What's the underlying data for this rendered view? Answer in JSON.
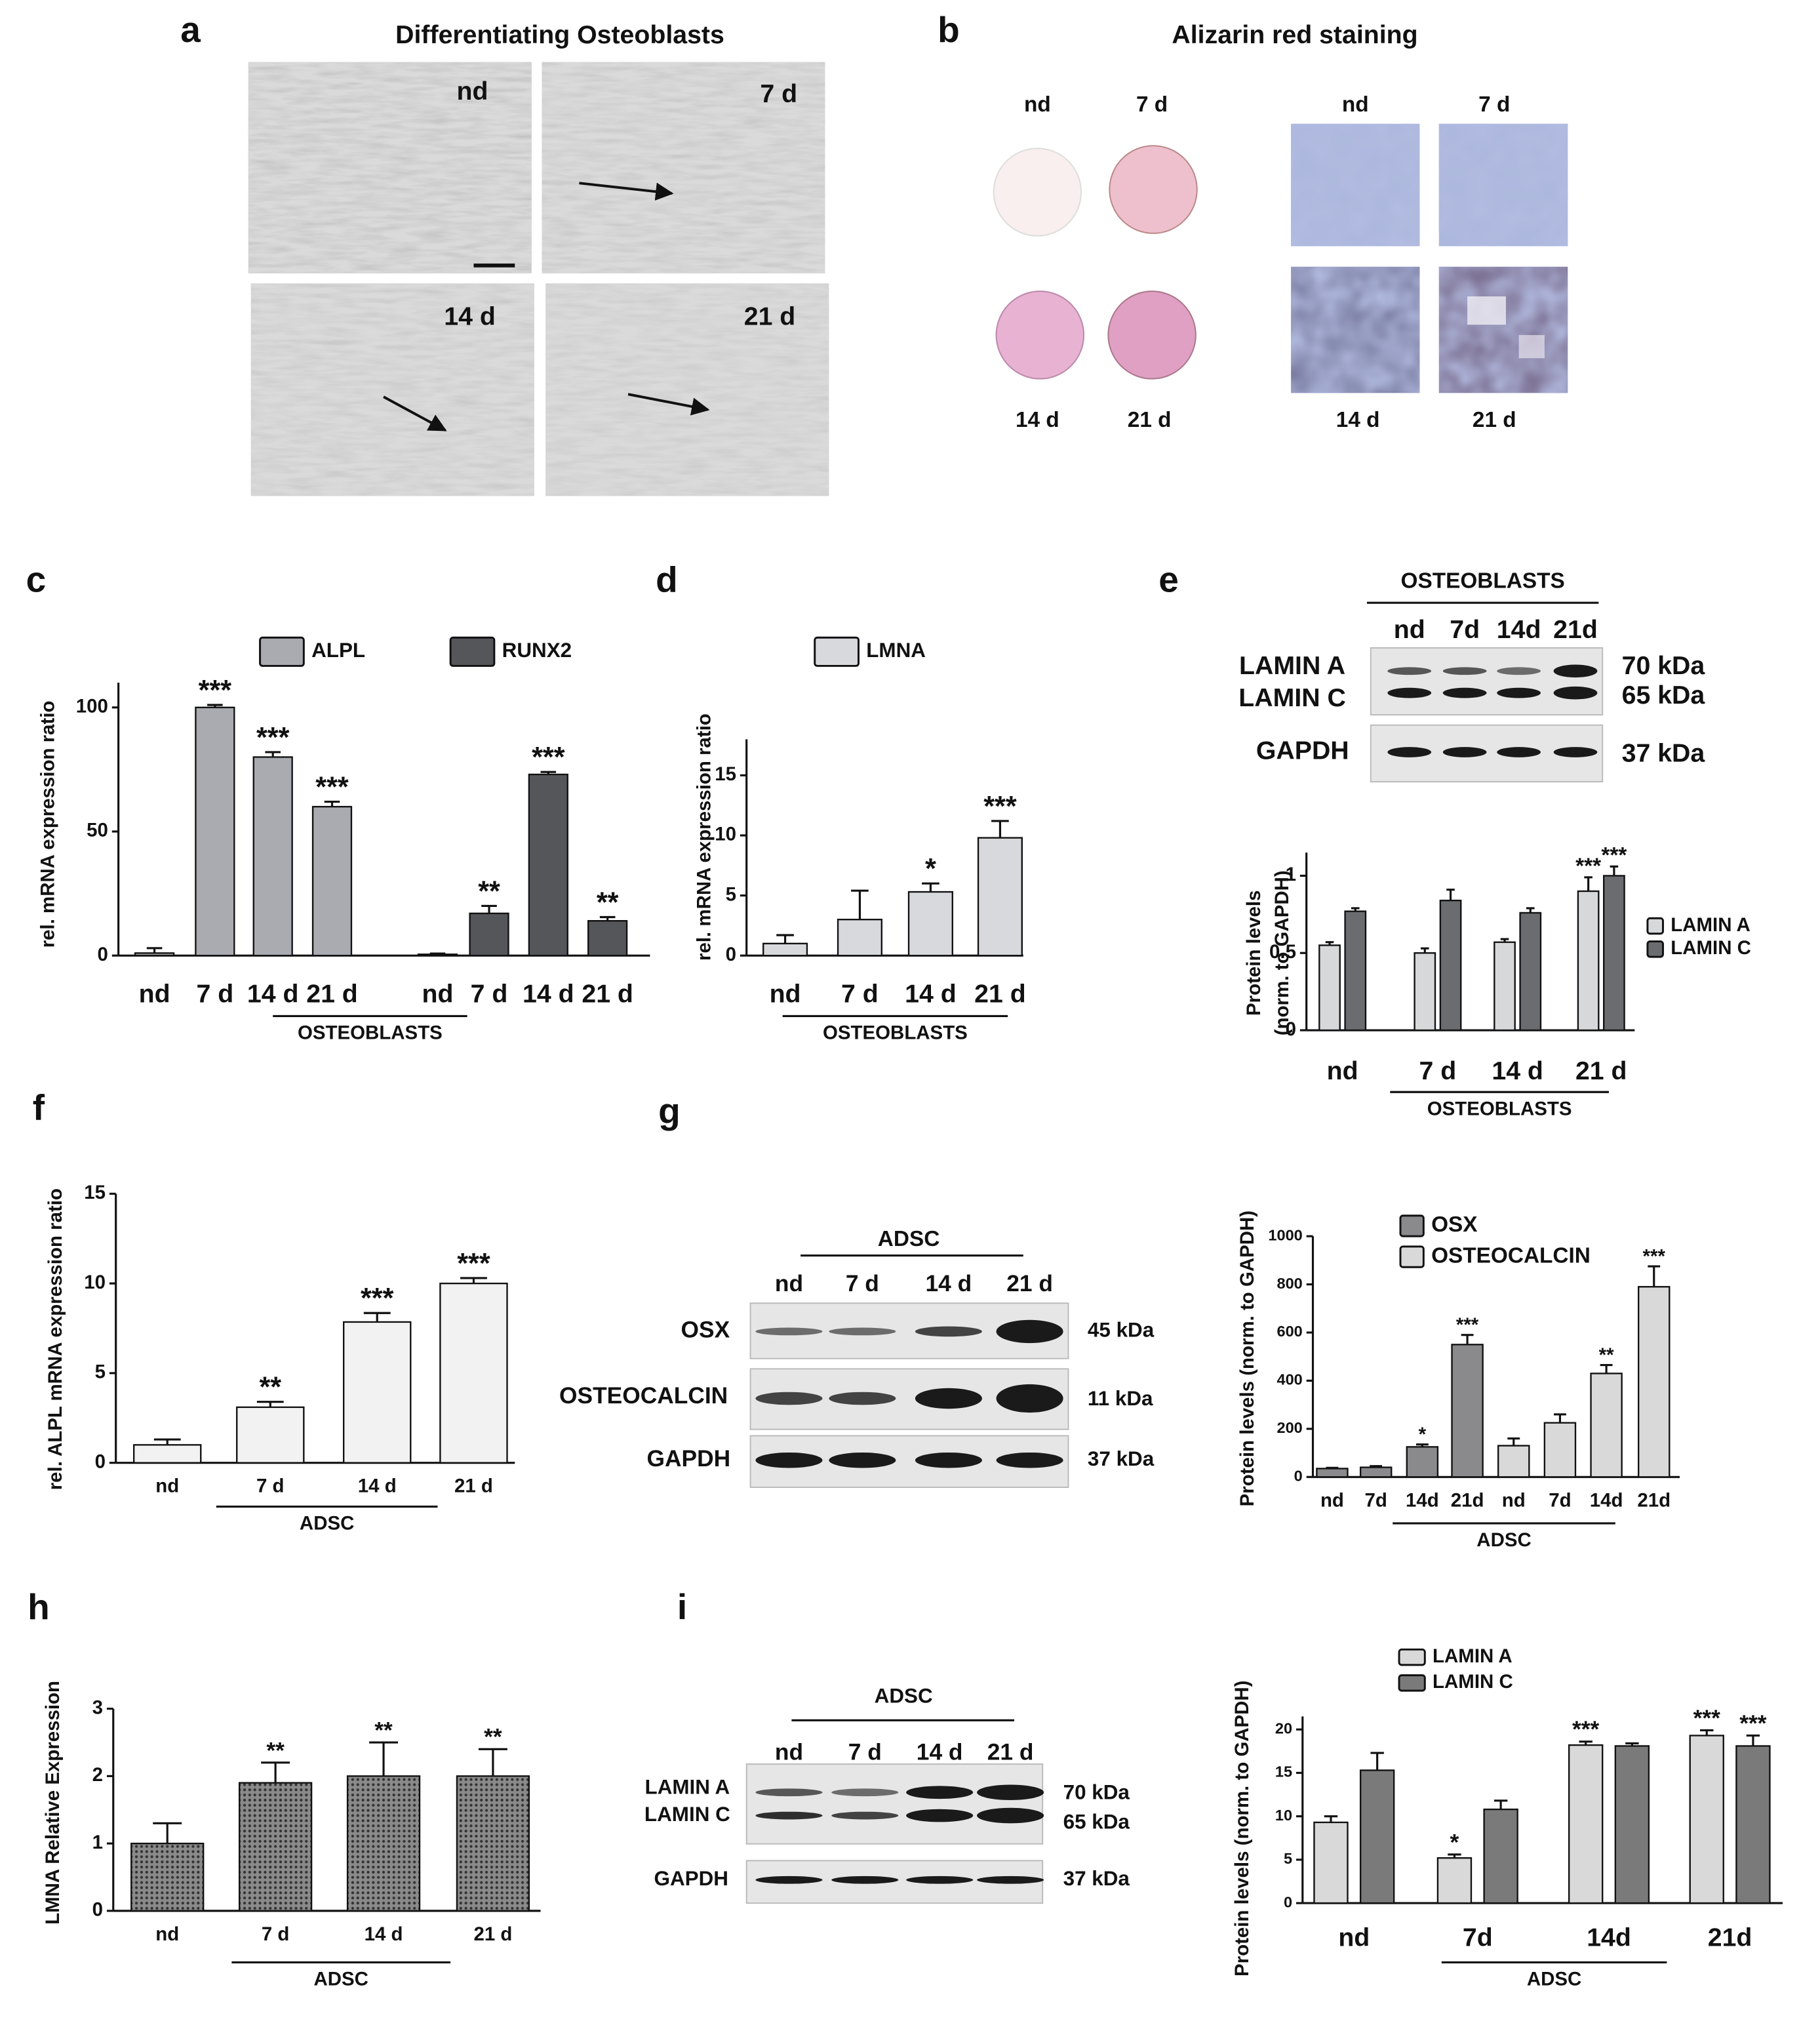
{
  "figure": {
    "panel_labels": [
      "a",
      "b",
      "c",
      "d",
      "e",
      "f",
      "g",
      "h",
      "i"
    ],
    "a": {
      "title": "Differentiating Osteoblasts",
      "labels": [
        "nd",
        "7 d",
        "14 d",
        "21 d"
      ]
    },
    "b": {
      "title": "Alizarin red staining",
      "plate_labels": [
        "nd",
        "7 d",
        "14 d",
        "21 d"
      ],
      "micro_labels": [
        "nd",
        "7 d",
        "14 d",
        "21 d"
      ]
    },
    "e_blot": {
      "group": "OSTEOBLASTS",
      "lanes": [
        "nd",
        "7d",
        "14d",
        "21d"
      ],
      "rows": [
        "LAMIN A",
        "LAMIN C",
        "GAPDH"
      ],
      "sizes": [
        "70 kDa",
        "65 kDa",
        "37 kDa"
      ]
    },
    "g_blot": {
      "group": "ADSC",
      "lanes": [
        "nd",
        "7 d",
        "14 d",
        "21 d"
      ],
      "rows": [
        "OSX",
        "OSTEOCALCIN",
        "GAPDH"
      ],
      "sizes": [
        "45 kDa",
        "11 kDa",
        "37 kDa"
      ]
    },
    "i_blot": {
      "group": "ADSC",
      "lanes": [
        "nd",
        "7 d",
        "14 d",
        "21 d"
      ],
      "rows": [
        "LAMIN A",
        "LAMIN C",
        "GAPDH"
      ],
      "sizes": [
        "70 kDa",
        "65 kDa",
        "37 kDa"
      ]
    }
  },
  "chart_data": [
    {
      "type": "bar",
      "ylabel": "rel. mRNA expression ratio",
      "group_label": "OSTEOBLASTS",
      "categories": [
        "nd",
        "7 d",
        "14 d",
        "21 d",
        "nd",
        "7 d",
        "14 d",
        "21 d"
      ],
      "series": [
        {
          "name": "ALPL",
          "color": "#a9abb0",
          "values": [
            1,
            100,
            80,
            60,
            null,
            null,
            null,
            null
          ],
          "errors": [
            2,
            1,
            2,
            2,
            null,
            null,
            null,
            null
          ],
          "significance": [
            null,
            "***",
            "***",
            "***",
            null,
            null,
            null,
            null
          ]
        },
        {
          "name": "RUNX2",
          "color": "#55565a",
          "values": [
            null,
            null,
            null,
            null,
            0.5,
            17,
            73,
            14
          ],
          "errors": [
            null,
            null,
            null,
            null,
            0.3,
            3,
            1,
            1.5
          ],
          "significance": [
            null,
            null,
            null,
            null,
            null,
            "**",
            "***",
            "**"
          ]
        }
      ],
      "ylim": [
        0,
        110
      ],
      "yticks": [
        0,
        50,
        100
      ]
    },
    {
      "type": "bar",
      "ylabel": "rel. mRNA expression ratio",
      "group_label": "OSTEOBLASTS",
      "categories": [
        "nd",
        "7 d",
        "14 d",
        "21 d"
      ],
      "series": [
        {
          "name": "LMNA",
          "color": "#d8d9dc",
          "values": [
            1,
            3,
            5.3,
            9.8
          ],
          "errors": [
            0.7,
            2.4,
            0.7,
            1.4
          ],
          "significance": [
            null,
            null,
            "*",
            "***"
          ]
        }
      ],
      "ylim": [
        0,
        18
      ],
      "yticks": [
        0,
        5,
        10,
        15
      ]
    },
    {
      "type": "bar",
      "ylabel": [
        "Protein levels",
        "(norm. to GAPDH)"
      ],
      "group_label": "OSTEOBLASTS",
      "categories": [
        "nd",
        "7 d",
        "14 d",
        "21 d"
      ],
      "series": [
        {
          "name": "LAMIN A",
          "color": "#d7d8da",
          "values": [
            0.55,
            0.5,
            0.57,
            0.9
          ],
          "errors": [
            0.02,
            0.03,
            0.02,
            0.09
          ],
          "significance": [
            null,
            null,
            null,
            "***"
          ]
        },
        {
          "name": "LAMIN C",
          "color": "#6b6c6f",
          "values": [
            0.77,
            0.84,
            0.76,
            1.0
          ],
          "errors": [
            0.02,
            0.07,
            0.03,
            0.06
          ],
          "significance": [
            null,
            null,
            null,
            "***"
          ]
        }
      ],
      "ylim": [
        0,
        1.15
      ],
      "yticks": [
        0,
        0.5,
        1
      ]
    },
    {
      "type": "bar",
      "ylabel": "rel. ALPL mRNA expression ratio",
      "group_label": "ADSC",
      "categories": [
        "nd",
        "7 d",
        "14 d",
        "21 d"
      ],
      "series": [
        {
          "name": "ALPL",
          "color": "#f2f2f2",
          "values": [
            1,
            3.1,
            7.85,
            10
          ],
          "errors": [
            0.3,
            0.3,
            0.5,
            0.3
          ],
          "significance": [
            null,
            "**",
            "***",
            "***"
          ]
        }
      ],
      "ylim": [
        0,
        15
      ],
      "yticks": [
        0,
        5,
        10,
        15
      ]
    },
    {
      "type": "bar",
      "ylabel": "Protein levels (norm. to GAPDH)",
      "group_label": "ADSC",
      "categories": [
        "nd",
        "7d",
        "14d",
        "21d",
        "nd",
        "7d",
        "14d",
        "21d"
      ],
      "series": [
        {
          "name": "OSX",
          "color": "#8a8a8c",
          "values": [
            35,
            40,
            125,
            550,
            null,
            null,
            null,
            null
          ],
          "errors": [
            3,
            5,
            10,
            40,
            null,
            null,
            null,
            null
          ],
          "significance": [
            null,
            null,
            "*",
            "***",
            null,
            null,
            null,
            null
          ]
        },
        {
          "name": "OSTEOCALCIN",
          "color": "#d9d9d9",
          "values": [
            null,
            null,
            null,
            null,
            130,
            225,
            430,
            790
          ],
          "errors": [
            null,
            null,
            null,
            null,
            30,
            35,
            35,
            85
          ],
          "significance": [
            null,
            null,
            null,
            null,
            null,
            null,
            "**",
            "***"
          ]
        }
      ],
      "ylim": [
        0,
        1000
      ],
      "yticks": [
        0,
        200,
        400,
        600,
        800,
        1000
      ]
    },
    {
      "type": "bar",
      "ylabel": "LMNA Relative Expression",
      "group_label": "ADSC",
      "categories": [
        "nd",
        "7 d",
        "14 d",
        "21 d"
      ],
      "series": [
        {
          "name": "LMNA",
          "color": "#6e6e6e",
          "pattern": "dots",
          "values": [
            1,
            1.9,
            2,
            2
          ],
          "errors": [
            0.3,
            0.3,
            0.5,
            0.4
          ],
          "significance": [
            null,
            "**",
            "**",
            "**"
          ]
        }
      ],
      "ylim": [
        0,
        3
      ],
      "yticks": [
        0,
        1,
        2,
        3
      ]
    },
    {
      "type": "bar",
      "ylabel": "Protein levels (norm. to GAPDH)",
      "group_label": "ADSC",
      "categories": [
        "nd",
        "7d",
        "14d",
        "21d"
      ],
      "series": [
        {
          "name": "LAMIN A",
          "color": "#d9d9d9",
          "values": [
            9.3,
            5.2,
            18.2,
            19.3
          ],
          "errors": [
            0.7,
            0.4,
            0.4,
            0.6
          ],
          "significance": [
            null,
            "*",
            "***",
            "***"
          ]
        },
        {
          "name": "LAMIN C",
          "color": "#7a7a7a",
          "values": [
            15.3,
            10.8,
            18.1,
            18.1
          ],
          "errors": [
            2,
            1,
            0.3,
            1.2
          ],
          "significance": [
            null,
            null,
            null,
            "***"
          ]
        }
      ],
      "ylim": [
        0,
        21.5
      ],
      "yticks": [
        0,
        5,
        10,
        15,
        20
      ]
    }
  ]
}
